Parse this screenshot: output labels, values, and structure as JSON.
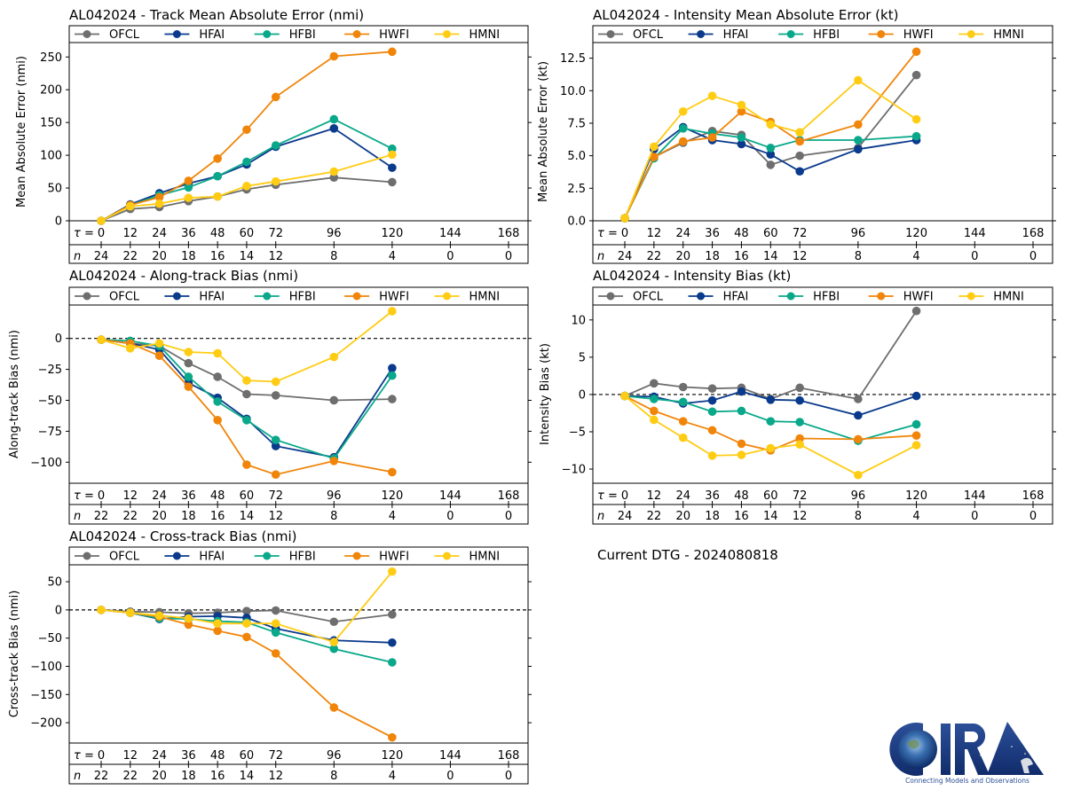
{
  "colors": {
    "OFCL": "#6e6e6e",
    "HFAI": "#0a3a8c",
    "HFBI": "#0aa88a",
    "HWFI": "#f0850a",
    "HMNI": "#ffcc14"
  },
  "footer": {
    "dtg_text": "Current DTG - 2024080818",
    "logo_text": "CIRA",
    "logo_tagline": "Connecting Models and Observations"
  },
  "chart_data": [
    {
      "id": "track-mae",
      "type": "line",
      "title": "AL042024 - Track Mean Absolute Error (nmi)",
      "ylabel": "Mean Absolute Error (nmi)",
      "xlabel": "τ",
      "ylim": [
        0,
        272
      ],
      "yticks": [
        0,
        50,
        100,
        150,
        200,
        250
      ],
      "zero_line": false,
      "x_ticks": [
        0,
        12,
        24,
        36,
        48,
        60,
        72,
        96,
        120,
        144,
        168
      ],
      "n_counts": [
        24,
        22,
        20,
        18,
        16,
        14,
        12,
        8,
        4,
        0,
        0
      ],
      "x": [
        0,
        12,
        24,
        36,
        48,
        60,
        72,
        96,
        120
      ],
      "legend": [
        "OFCL",
        "HFAI",
        "HFBI",
        "HWFI",
        "HMNI"
      ],
      "legend_position": "top",
      "series": [
        {
          "name": "OFCL",
          "values": [
            0,
            18,
            21,
            30,
            37,
            48,
            55,
            66,
            59
          ]
        },
        {
          "name": "HFAI",
          "values": [
            0,
            25,
            42,
            57,
            68,
            86,
            113,
            141,
            81
          ]
        },
        {
          "name": "HFBI",
          "values": [
            0,
            24,
            39,
            51,
            68,
            90,
            115,
            155,
            110
          ]
        },
        {
          "name": "HWFI",
          "values": [
            0,
            24,
            36,
            61,
            95,
            139,
            189,
            251,
            258
          ]
        },
        {
          "name": "HMNI",
          "values": [
            0,
            22,
            26,
            35,
            37,
            53,
            60,
            75,
            101
          ]
        }
      ]
    },
    {
      "id": "intensity-mae",
      "type": "line",
      "title": "AL042024 - Intensity Mean Absolute Error (kt)",
      "ylabel": "Mean Absolute Error (kt)",
      "xlabel": "τ",
      "ylim": [
        0,
        13.7
      ],
      "yticks": [
        0.0,
        2.5,
        5.0,
        7.5,
        10.0,
        12.5
      ],
      "ytick_labels": [
        "0.0",
        "2.5",
        "5.0",
        "7.5",
        "10.0",
        "12.5"
      ],
      "zero_line": false,
      "x_ticks": [
        0,
        12,
        24,
        36,
        48,
        60,
        72,
        96,
        120,
        144,
        168
      ],
      "n_counts": [
        24,
        22,
        20,
        18,
        16,
        14,
        12,
        8,
        4,
        0,
        0
      ],
      "x": [
        0,
        12,
        24,
        36,
        48,
        60,
        72,
        96,
        120
      ],
      "legend": [
        "OFCL",
        "HFAI",
        "HFBI",
        "HWFI",
        "HMNI"
      ],
      "legend_position": "top",
      "series": [
        {
          "name": "OFCL",
          "values": [
            0.2,
            4.9,
            6.0,
            6.9,
            6.6,
            4.3,
            5.0,
            5.6,
            11.2
          ]
        },
        {
          "name": "HFAI",
          "values": [
            0.2,
            5.5,
            7.2,
            6.2,
            5.9,
            5.1,
            3.8,
            5.5,
            6.2
          ]
        },
        {
          "name": "HFBI",
          "values": [
            0.2,
            4.8,
            7.1,
            6.7,
            6.4,
            5.6,
            6.2,
            6.2,
            6.5
          ]
        },
        {
          "name": "HWFI",
          "values": [
            0.2,
            4.9,
            6.1,
            6.4,
            8.4,
            7.6,
            6.1,
            7.4,
            13.0
          ]
        },
        {
          "name": "HMNI",
          "values": [
            0.2,
            5.7,
            8.4,
            9.6,
            8.9,
            7.4,
            6.8,
            10.8,
            7.8
          ]
        }
      ]
    },
    {
      "id": "along-track-bias",
      "type": "line",
      "title": "AL042024 - Along-track Bias (nmi)",
      "ylabel": "Along-track Bias (nmi)",
      "xlabel": "τ",
      "ylim": [
        -117,
        27
      ],
      "yticks": [
        -100,
        -75,
        -50,
        -25,
        0
      ],
      "ytick_labels": [
        "−100",
        "−75",
        "−50",
        "−25",
        "0"
      ],
      "zero_line": true,
      "x_ticks": [
        0,
        12,
        24,
        36,
        48,
        60,
        72,
        96,
        120,
        144,
        168
      ],
      "n_counts": [
        22,
        22,
        20,
        18,
        16,
        14,
        12,
        8,
        4,
        0,
        0
      ],
      "x": [
        0,
        12,
        24,
        36,
        48,
        60,
        72,
        96,
        120
      ],
      "legend": [
        "OFCL",
        "HFAI",
        "HFBI",
        "HWFI",
        "HMNI"
      ],
      "legend_position": "top",
      "series": [
        {
          "name": "OFCL",
          "values": [
            -1,
            -4,
            -6,
            -20,
            -31,
            -45,
            -46,
            -50,
            -49
          ]
        },
        {
          "name": "HFAI",
          "values": [
            -1,
            -4,
            -9,
            -36,
            -48,
            -65,
            -87,
            -96,
            -24
          ]
        },
        {
          "name": "HFBI",
          "values": [
            -1,
            -2,
            -6,
            -31,
            -51,
            -66,
            -82,
            -97,
            -30
          ]
        },
        {
          "name": "HWFI",
          "values": [
            -1,
            -4,
            -14,
            -39,
            -66,
            -102,
            -110,
            -99,
            -108
          ]
        },
        {
          "name": "HMNI",
          "values": [
            -1,
            -8,
            -4,
            -11,
            -12,
            -34,
            -35,
            -15,
            22
          ]
        }
      ]
    },
    {
      "id": "intensity-bias",
      "type": "line",
      "title": "AL042024 - Intensity Bias (kt)",
      "ylabel": "Intensity Bias (kt)",
      "xlabel": "τ",
      "ylim": [
        -11.9,
        12.0
      ],
      "yticks": [
        -10,
        -5,
        0,
        5,
        10
      ],
      "ytick_labels": [
        "−10",
        "−5",
        "0",
        "5",
        "10"
      ],
      "zero_line": true,
      "x_ticks": [
        0,
        12,
        24,
        36,
        48,
        60,
        72,
        96,
        120,
        144,
        168
      ],
      "n_counts": [
        24,
        22,
        20,
        18,
        16,
        14,
        12,
        8,
        4,
        0,
        0
      ],
      "x": [
        0,
        12,
        24,
        36,
        48,
        60,
        72,
        96,
        120
      ],
      "legend": [
        "OFCL",
        "HFAI",
        "HFBI",
        "HWFI",
        "HMNI"
      ],
      "legend_position": "top",
      "series": [
        {
          "name": "OFCL",
          "values": [
            -0.2,
            1.5,
            1.0,
            0.8,
            0.9,
            -0.6,
            0.9,
            -0.6,
            11.2
          ]
        },
        {
          "name": "HFAI",
          "values": [
            -0.2,
            -0.3,
            -1.2,
            -0.8,
            0.4,
            -0.7,
            -0.8,
            -2.8,
            -0.2
          ]
        },
        {
          "name": "HFBI",
          "values": [
            -0.2,
            -0.6,
            -1.0,
            -2.3,
            -2.2,
            -3.6,
            -3.7,
            -6.2,
            -4.0
          ]
        },
        {
          "name": "HWFI",
          "values": [
            -0.2,
            -2.2,
            -3.6,
            -4.8,
            -6.6,
            -7.5,
            -5.9,
            -6.0,
            -5.5
          ]
        },
        {
          "name": "HMNI",
          "values": [
            -0.2,
            -3.4,
            -5.8,
            -8.2,
            -8.1,
            -7.2,
            -6.7,
            -10.8,
            -6.8
          ]
        }
      ]
    },
    {
      "id": "cross-track-bias",
      "type": "line",
      "title": "AL042024 - Cross-track Bias (nmi)",
      "ylabel": "Cross-track Bias (nmi)",
      "xlabel": "τ",
      "ylim": [
        -236,
        80
      ],
      "yticks": [
        -200,
        -150,
        -100,
        -50,
        0,
        50
      ],
      "ytick_labels": [
        "−200",
        "−150",
        "−100",
        "−50",
        "0",
        "50"
      ],
      "zero_line": true,
      "x_ticks": [
        0,
        12,
        24,
        36,
        48,
        60,
        72,
        96,
        120,
        144,
        168
      ],
      "n_counts": [
        22,
        22,
        20,
        18,
        16,
        14,
        12,
        8,
        4,
        0,
        0
      ],
      "x": [
        0,
        12,
        24,
        36,
        48,
        60,
        72,
        96,
        120
      ],
      "legend": [
        "OFCL",
        "HFAI",
        "HFBI",
        "HWFI",
        "HMNI"
      ],
      "legend_position": "top",
      "series": [
        {
          "name": "OFCL",
          "values": [
            0,
            -3,
            -4,
            -6,
            -5,
            -2,
            -1,
            -21,
            -8
          ]
        },
        {
          "name": "HFAI",
          "values": [
            0,
            -5,
            -16,
            -12,
            -11,
            -14,
            -33,
            -54,
            -58
          ]
        },
        {
          "name": "HFBI",
          "values": [
            0,
            -5,
            -15,
            -16,
            -20,
            -22,
            -40,
            -69,
            -93
          ]
        },
        {
          "name": "HWFI",
          "values": [
            0,
            -5,
            -12,
            -26,
            -37,
            -48,
            -77,
            -173,
            -226
          ]
        },
        {
          "name": "HMNI",
          "values": [
            0,
            -5,
            -10,
            -15,
            -24,
            -24,
            -24,
            -57,
            68
          ]
        }
      ]
    }
  ]
}
